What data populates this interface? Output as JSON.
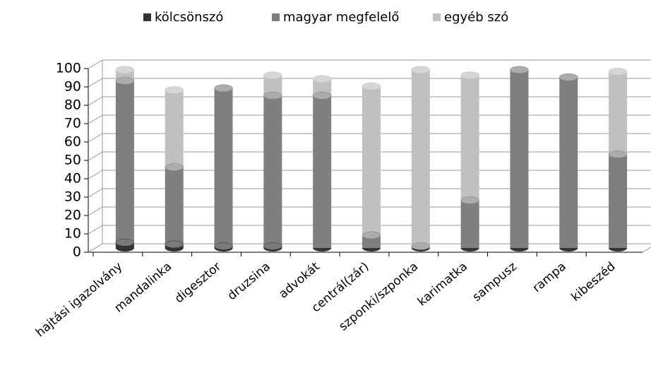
{
  "chart_data": {
    "type": "bar3d-stacked-cylinder",
    "categories": [
      "hajtási igazolvány",
      "mandalinka",
      "digesztor",
      "druzsina",
      "advokát",
      "centrál(zár)",
      "szponki/szponka",
      "karimatka",
      "sampusz",
      "rampa",
      "kibeszéd"
    ],
    "series": [
      {
        "name": "kölcsönszó",
        "color": "#333333",
        "values": [
          3,
          2,
          1,
          1,
          0,
          0,
          0,
          0,
          0,
          0,
          0
        ]
      },
      {
        "name": "magyar megfelelő",
        "color": "#7f7f7f",
        "values": [
          88,
          42,
          86,
          82,
          83,
          7,
          1,
          26,
          97,
          93,
          51
        ]
      },
      {
        "name": "egyéb szó",
        "color": "#c0c0c0",
        "values": [
          6,
          42,
          0,
          11,
          9,
          81,
          96,
          68,
          0,
          0,
          45
        ]
      }
    ],
    "ylim": [
      0,
      100
    ],
    "yticks": [
      0,
      10,
      20,
      30,
      40,
      50,
      60,
      70,
      80,
      90,
      100
    ],
    "grid": true,
    "legend": "top"
  }
}
